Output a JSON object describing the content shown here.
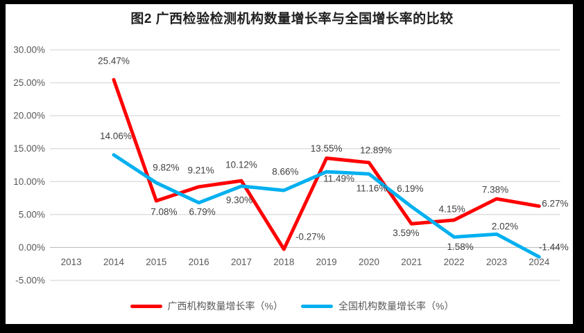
{
  "chart_data": {
    "type": "line",
    "title": "图2 广西检验检测机构数量增长率与全国增长率的比较",
    "categories": [
      "2013",
      "2014",
      "2015",
      "2016",
      "2017",
      "2018",
      "2019",
      "2020",
      "2021",
      "2022",
      "2023",
      "2024"
    ],
    "series": [
      {
        "name": "广西机构数量增长率（%）",
        "color": "#FF0000",
        "values": [
          null,
          25.47,
          7.08,
          9.21,
          10.12,
          -0.27,
          13.55,
          12.89,
          3.59,
          4.15,
          7.38,
          6.27
        ]
      },
      {
        "name": "全国机构数量增长率（%）",
        "color": "#00B0F0",
        "values": [
          null,
          14.06,
          9.82,
          6.79,
          9.3,
          8.66,
          11.49,
          11.16,
          6.19,
          1.58,
          2.02,
          -1.44
        ]
      }
    ],
    "y_axis": {
      "min": -5,
      "max": 30,
      "step": 5,
      "tick_labels": [
        "-5.00%",
        "0.00%",
        "5.00%",
        "10.00%",
        "15.00%",
        "20.00%",
        "25.00%",
        "30.00%"
      ]
    },
    "x_axis": {
      "tick_labels": [
        "2013",
        "2014",
        "2015",
        "2016",
        "2017",
        "2018",
        "2019",
        "2020",
        "2021",
        "2022",
        "2023",
        "2024"
      ]
    },
    "data_labels": true,
    "grid": true,
    "legend_position": "bottom",
    "colors": {
      "gridline": "#D9D9D9",
      "zero_axis": "#BFBFBF",
      "tick_text": "#595959",
      "label_text": "#404040",
      "frame": "#000000"
    }
  }
}
